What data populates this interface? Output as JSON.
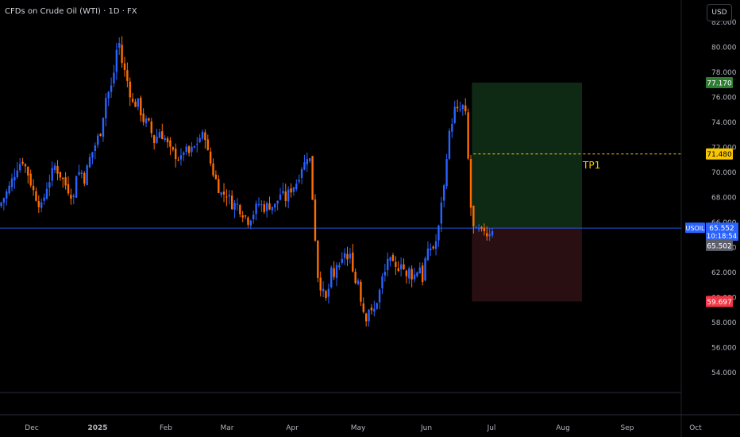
{
  "header": {
    "title": "CFDs on Crude Oil (WTI) · 1D · FX",
    "currency_button": "USD"
  },
  "colors": {
    "background": "#000000",
    "up": "#2962ff",
    "down": "#ff6d00",
    "profit_zone": "#0f2a14",
    "loss_zone": "#2a0f12",
    "tp_line": "#f7c600",
    "price_line": "#2962ff"
  },
  "chart_data": {
    "type": "candlestick",
    "symbol": "USOIL",
    "y_axis": {
      "ticks": [
        "82.000",
        "80.000",
        "78.000",
        "76.000",
        "74.000",
        "72.000",
        "70.000",
        "68.000",
        "66.000",
        "64.000",
        "62.000",
        "60.000",
        "58.000",
        "56.000",
        "54.000"
      ],
      "range": [
        53,
        82.5
      ]
    },
    "x_axis": {
      "labels": [
        "Dec",
        "2025",
        "Feb",
        "Mar",
        "Apr",
        "May",
        "Jun",
        "Jul",
        "Aug",
        "Sep",
        "Oct"
      ],
      "bold_labels": [
        "2025"
      ]
    },
    "position": {
      "entry": 65.552,
      "target": 77.17,
      "stop": 59.697,
      "tp1": 71.48,
      "tp1_label": "TP1"
    },
    "price_labels": {
      "target": "77.170",
      "tp1": "71.480",
      "symbol": "USOIL",
      "last": "65.552",
      "countdown": "10:18:54",
      "prev": "65.502",
      "stop": "59.697"
    },
    "close_path": [
      [
        0,
        67.6
      ],
      [
        3,
        68.8
      ],
      [
        6,
        70.5
      ],
      [
        8,
        71.0
      ],
      [
        10,
        69.9
      ],
      [
        12,
        68.5
      ],
      [
        15,
        67.2
      ],
      [
        17,
        68.9
      ],
      [
        20,
        70.5
      ],
      [
        22,
        69.8
      ],
      [
        24,
        69.0
      ],
      [
        27,
        68.0
      ],
      [
        28,
        70.0
      ],
      [
        30,
        70.0
      ],
      [
        31,
        69.5
      ],
      [
        33,
        71.1
      ],
      [
        35,
        72.2
      ],
      [
        37,
        73.3
      ],
      [
        39,
        76.0
      ],
      [
        41,
        76.8
      ],
      [
        42,
        78.0
      ],
      [
        43,
        79.8
      ],
      [
        44,
        80.3
      ],
      [
        45,
        78.8
      ],
      [
        47,
        77.3
      ],
      [
        49,
        75.5
      ],
      [
        51,
        75.5
      ],
      [
        53,
        74.2
      ],
      [
        55,
        73.8
      ],
      [
        57,
        72.5
      ],
      [
        59,
        73.3
      ],
      [
        61,
        72.7
      ],
      [
        63,
        71.7
      ],
      [
        65,
        71.4
      ],
      [
        67,
        71.0
      ],
      [
        68,
        71.8
      ],
      [
        70,
        71.5
      ],
      [
        72,
        72.0
      ],
      [
        74,
        72.8
      ],
      [
        76,
        73.0
      ],
      [
        77,
        71.5
      ],
      [
        79,
        70.0
      ],
      [
        81,
        68.8
      ],
      [
        82,
        68.3
      ],
      [
        84,
        68.3
      ],
      [
        86,
        67.5
      ],
      [
        88,
        67.4
      ],
      [
        90,
        66.8
      ],
      [
        92,
        66.2
      ],
      [
        94,
        66.8
      ],
      [
        96,
        67.5
      ],
      [
        98,
        67.2
      ],
      [
        100,
        67.4
      ],
      [
        102,
        67.3
      ],
      [
        104,
        68.3
      ],
      [
        106,
        67.9
      ],
      [
        108,
        68.7
      ],
      [
        110,
        69.2
      ],
      [
        112,
        70.5
      ],
      [
        113,
        70.7
      ],
      [
        114,
        71.4
      ],
      [
        115,
        71.0
      ],
      [
        116,
        68.0
      ],
      [
        117,
        64.8
      ],
      [
        118,
        61.8
      ],
      [
        119,
        61.0
      ],
      [
        120,
        60.3
      ],
      [
        121,
        59.8
      ],
      [
        122,
        60.7
      ],
      [
        123,
        62.0
      ],
      [
        124,
        61.5
      ],
      [
        125,
        62.7
      ],
      [
        126,
        62.2
      ],
      [
        127,
        62.8
      ],
      [
        128,
        63.7
      ],
      [
        129,
        63.0
      ],
      [
        130,
        63.2
      ],
      [
        131,
        62.5
      ],
      [
        132,
        61.2
      ],
      [
        133,
        61.5
      ],
      [
        134,
        60.0
      ],
      [
        135,
        59.0
      ],
      [
        136,
        58.5
      ],
      [
        137,
        59.2
      ],
      [
        138,
        58.7
      ],
      [
        139,
        59.0
      ],
      [
        140,
        59.8
      ],
      [
        141,
        60.5
      ],
      [
        142,
        61.5
      ],
      [
        143,
        62.0
      ],
      [
        144,
        63.2
      ],
      [
        145,
        62.8
      ],
      [
        146,
        62.5
      ],
      [
        147,
        62.2
      ],
      [
        148,
        62.5
      ],
      [
        149,
        63.0
      ],
      [
        150,
        62.3
      ],
      [
        151,
        61.5
      ],
      [
        152,
        62.2
      ],
      [
        153,
        61.8
      ],
      [
        154,
        61.8
      ],
      [
        155,
        62.2
      ],
      [
        156,
        62.5
      ],
      [
        157,
        61.5
      ],
      [
        158,
        63.0
      ],
      [
        159,
        63.5
      ],
      [
        160,
        64.0
      ],
      [
        161,
        64.0
      ],
      [
        162,
        64.5
      ],
      [
        163,
        65.5
      ],
      [
        164,
        67.8
      ],
      [
        165,
        68.8
      ],
      [
        166,
        71.5
      ],
      [
        167,
        73.0
      ],
      [
        168,
        74.2
      ],
      [
        169,
        75.0
      ],
      [
        170,
        74.8
      ],
      [
        171,
        75.0
      ],
      [
        172,
        75.2
      ],
      [
        173,
        74.5
      ],
      [
        174,
        71.0
      ],
      [
        175,
        67.2
      ],
      [
        176,
        65.5
      ],
      [
        177,
        65.2
      ],
      [
        178,
        65.3
      ],
      [
        179,
        65.1
      ],
      [
        180,
        65.5
      ],
      [
        181,
        65.1
      ],
      [
        182,
        65.3
      ],
      [
        183,
        65.552
      ]
    ]
  }
}
